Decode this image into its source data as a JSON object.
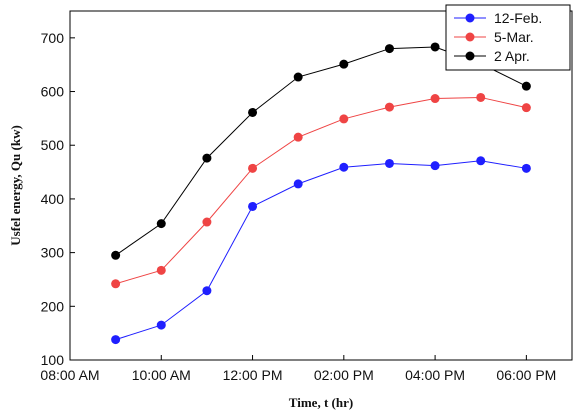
{
  "chart_data": {
    "type": "line",
    "xlabel": "Time, t (hr)",
    "ylabel": "Usfel energy, Qu (kw)",
    "x_hours": [
      9,
      10,
      11,
      12,
      13,
      14,
      15,
      16,
      17,
      18
    ],
    "xlim_hours": [
      8,
      19
    ],
    "ylim": [
      100,
      750
    ],
    "x_ticks": [
      {
        "hour": 8,
        "label": "08:00 AM"
      },
      {
        "hour": 10,
        "label": "10:00 AM"
      },
      {
        "hour": 12,
        "label": "12:00 PM"
      },
      {
        "hour": 14,
        "label": "02:00 PM"
      },
      {
        "hour": 16,
        "label": "04:00 PM"
      },
      {
        "hour": 18,
        "label": "06:00 PM"
      }
    ],
    "y_ticks": [
      100,
      200,
      300,
      400,
      500,
      600,
      700
    ],
    "legend_position": "top-right",
    "grid": false,
    "series": [
      {
        "name": "12-Feb.",
        "color": "#1f1fff",
        "values": [
          138,
          165,
          229,
          386,
          428,
          459,
          466,
          462,
          471,
          457
        ]
      },
      {
        "name": "5-Mar.",
        "color": "#ef4444",
        "values": [
          242,
          267,
          357,
          457,
          515,
          549,
          571,
          587,
          589,
          570
        ]
      },
      {
        "name": "2 Apr.",
        "color": "#000000",
        "values": [
          295,
          354,
          476,
          561,
          627,
          651,
          680,
          683,
          652,
          610
        ]
      }
    ]
  }
}
